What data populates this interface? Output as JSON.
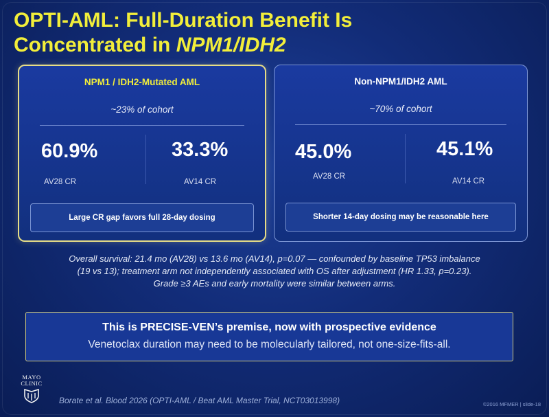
{
  "title": {
    "line1": "OPTI-AML: Full-Duration Benefit Is",
    "line2_plain": "Concentrated in ",
    "line2_italic": "NPM1/IDH2"
  },
  "left_card": {
    "header": "NPM1 / IDH2-Mutated AML",
    "cohort": "~23% of cohort",
    "stat1_value": "60.9%",
    "stat1_label": "AV28 CR",
    "stat2_value": "33.3%",
    "stat2_label": "AV14 CR",
    "note": "Large CR gap favors full 28-day dosing"
  },
  "right_card": {
    "header": "Non-NPM1/IDH2 AML",
    "cohort": "~70% of cohort",
    "stat1_value": "45.0%",
    "stat1_label": "AV28 CR",
    "stat2_value": "45.1%",
    "stat2_label": "AV14 CR",
    "note": "Shorter 14-day dosing may be reasonable here"
  },
  "notes": {
    "line1": "Overall survival: 21.4 mo (AV28) vs 13.6 mo (AV14), p=0.07 — confounded by baseline TP53 imbalance",
    "line2": "(19 vs 13); treatment arm not independently associated with OS after adjustment (HR 1.33, p=0.23).",
    "line3": "Grade ≥3 AEs and early mortality were similar between arms."
  },
  "premise": {
    "line1": "This is PRECISE-VEN’s premise, now with prospective evidence",
    "line2": "Venetoclax duration may need to be molecularly tailored, not one-size-fits-all."
  },
  "logo": {
    "line1": "MAYO",
    "line2": "CLINIC",
    "icon": "mayo-shield-icon"
  },
  "citation": "Borate et al. Blood 2026 (OPTI-AML / Beat AML Master Trial, NCT03013998)",
  "footer": "©2016 MFMER  |  slide-18",
  "colors": {
    "title": "#f2ee3a",
    "background": "#122c78",
    "left_border": "#e7dd86"
  }
}
